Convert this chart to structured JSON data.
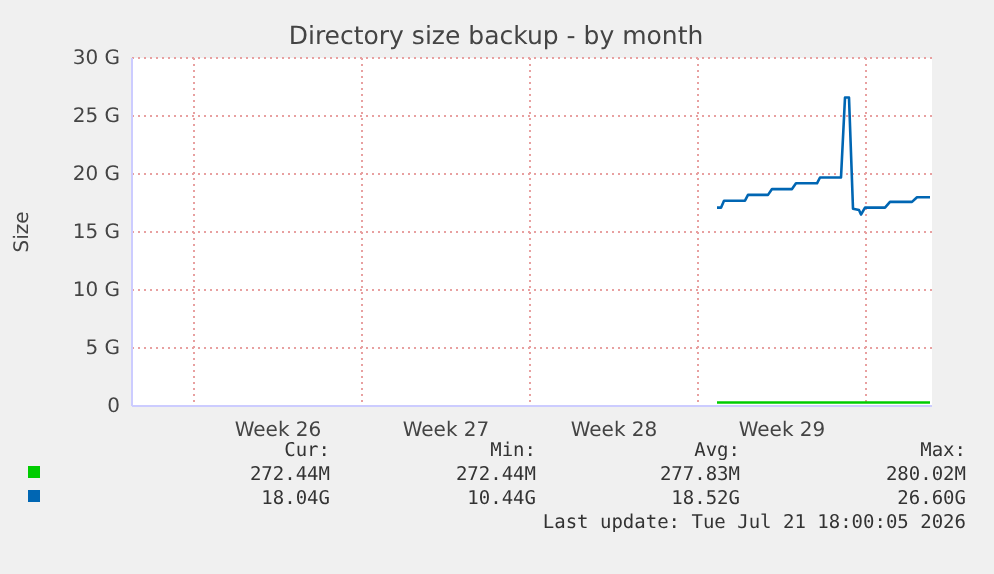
{
  "chart_data": {
    "type": "line",
    "title": "Directory size backup - by month",
    "ylabel": "Size",
    "xlim": [
      "2026-06-19T10:00",
      "2026-07-22T18:00"
    ],
    "xticks": [
      {
        "value": "2026-06-22T00:00",
        "label": null
      },
      {
        "value": "2026-06-25T12:00",
        "label": "Week 26"
      },
      {
        "value": "2026-06-29T00:00",
        "label": null
      },
      {
        "value": "2026-07-02T12:00",
        "label": "Week 27"
      },
      {
        "value": "2026-07-06T00:00",
        "label": null
      },
      {
        "value": "2026-07-09T12:00",
        "label": "Week 28"
      },
      {
        "value": "2026-07-13T00:00",
        "label": null
      },
      {
        "value": "2026-07-16T12:00",
        "label": "Week 29"
      },
      {
        "value": "2026-07-20T00:00",
        "label": null
      }
    ],
    "ylim": [
      0,
      30
    ],
    "yticks": [
      0,
      {
        "value": 5,
        "label": "5 G"
      },
      {
        "value": 10,
        "label": "10 G"
      },
      {
        "value": 15,
        "label": "15 G"
      },
      {
        "value": 20,
        "label": "20 G"
      },
      {
        "value": 25,
        "label": "25 G"
      },
      {
        "value": 30,
        "label": "30 G"
      }
    ],
    "grid": true,
    "series": [
      {
        "color": "#00cc00",
        "x": [
          "2026-07-13T19:00",
          "2026-07-22T16:00"
        ],
        "values": [
          0.3,
          0.3
        ]
      },
      {
        "color": "#0066b3",
        "x": [
          "2026-07-13T19:00",
          "2026-07-13T23:00",
          "2026-07-14T02:00",
          "2026-07-14T23:00",
          "2026-07-15T02:00",
          "2026-07-15T22:00",
          "2026-07-16T02:00",
          "2026-07-16T22:00",
          "2026-07-17T02:00",
          "2026-07-17T23:00",
          "2026-07-18T02:00",
          "2026-07-18T23:00",
          "2026-07-19T03:00",
          "2026-07-19T07:00",
          "2026-07-19T11:00",
          "2026-07-19T17:00",
          "2026-07-19T19:00",
          "2026-07-19T23:00",
          "2026-07-20T19:00",
          "2026-07-21T00:00",
          "2026-07-21T22:00",
          "2026-07-22T03:00",
          "2026-07-22T16:00"
        ],
        "values": [
          17.1,
          17.1,
          17.7,
          17.7,
          18.2,
          18.2,
          18.7,
          18.7,
          19.2,
          19.2,
          19.7,
          19.7,
          26.6,
          26.6,
          17.0,
          16.9,
          16.5,
          17.1,
          17.1,
          17.6,
          17.6,
          18.0,
          18.0
        ]
      }
    ],
    "annotations": [
      "Cur:",
      "Min:",
      "Avg:",
      "Max:",
      "272.44M",
      "272.44M",
      "277.83M",
      "280.02M",
      "18.04G",
      "10.44G",
      "18.52G",
      "26.60G",
      "Last update: Tue Jul 21 18:00:05 2026"
    ]
  }
}
